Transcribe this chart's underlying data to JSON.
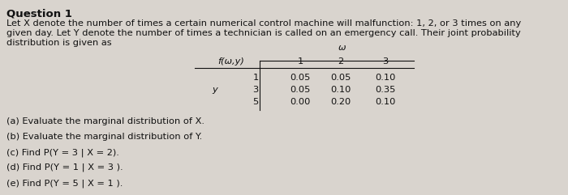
{
  "title": "Question 1",
  "line1": "Let X denote the number of times a certain numerical control machine will malfunction: 1, 2, or 3 times on any",
  "line2": "given day. Let Y denote the number of times a technician is called on an emergency call. Their joint probability",
  "line3": "distribution is given as",
  "table_label_fx": "f(ω,y)",
  "table_label_x_var": "ω",
  "table_label_y_var": "y",
  "table_header_x": [
    "1",
    "2",
    "3"
  ],
  "table_header_y": [
    "1",
    "3",
    "5"
  ],
  "table_data": [
    [
      0.05,
      0.05,
      0.1
    ],
    [
      0.05,
      0.1,
      0.35
    ],
    [
      0.0,
      0.2,
      0.1
    ]
  ],
  "q_a": "(a) Evaluate the marginal distribution of X.",
  "q_b": "(b) Evaluate the marginal distribution of Y.",
  "q_c": "(c) Find P(Y = 3 | X = 2).",
  "q_d": "(d) Find P(Y = 1 | X = 3 ).",
  "q_e": "(e) Find P(Y = 5 | X = 1 ).",
  "bg_color": "#d9d4ce",
  "text_color": "#111111",
  "fs_title": 9.5,
  "fs_body": 8.2,
  "fs_table": 8.2
}
